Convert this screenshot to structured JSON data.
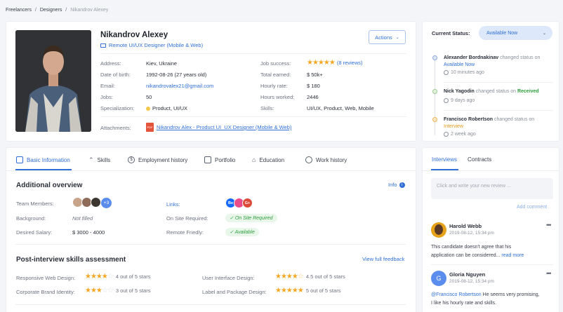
{
  "breadcrumb": {
    "l1": "Freelancers",
    "sep1": "/",
    "l2": "Designers",
    "sep2": "/",
    "l3": "Nikandrov Alexey"
  },
  "profile": {
    "name": "Nikandrov Alexey",
    "title": "Remote UI/UX Designer (Mobile & Web)",
    "actions_label": "Actions",
    "fields_left": [
      {
        "label": "Address:",
        "value": "Kiev, Ukraine"
      },
      {
        "label": "Date of birth:",
        "value": "1992-08-26 (27 years old)"
      },
      {
        "label": "Email:",
        "value": "nikandrovalex21@gmail.com"
      },
      {
        "label": "Jobs:",
        "value": "50"
      },
      {
        "label": "Specialization:",
        "value": "Product, UI/UX"
      }
    ],
    "fields_right": [
      {
        "label": "Job success:",
        "value": "(8 reviews)"
      },
      {
        "label": "Total earned:",
        "value": "$ 50k+"
      },
      {
        "label": "Hourly rate:",
        "value": "$ 180"
      },
      {
        "label": "Hours worked:",
        "value": "2446"
      },
      {
        "label": "Skills:",
        "value": "UI/UX, Product, Web, Mobile"
      }
    ],
    "job_success_stars": 5,
    "attachments_label": "Attachments:",
    "attachment_file": "Nikandrov Alex - Product UI_UX Designer (Mobile & Web)",
    "pdf_badge": "PDF"
  },
  "status": {
    "label": "Current Status:",
    "value": "Available Now",
    "activity": [
      {
        "name": "Alexander Bordnakinav",
        "text": "changed status on",
        "status": "Available Now",
        "status_color": "#2f6fd6",
        "time": "10 minutes ago",
        "dot": "#8fa9d9"
      },
      {
        "name": "Nick Yagodin",
        "text": "changed status on",
        "status": "Received",
        "status_color": "#2e9e3e",
        "time": "9 days ago",
        "dot": "#9cc98f"
      },
      {
        "name": "Francisco Robertson",
        "text": "changed status on",
        "status": "Interview",
        "status_color": "#e39a1f",
        "time": "2 week ago",
        "dot": "#f0b45a"
      }
    ]
  },
  "tabs": [
    "Basic Information",
    "Skills",
    "Employment history",
    "Portfolio",
    "Education",
    "Work history"
  ],
  "overview": {
    "title": "Additional overview",
    "info_label": "Info",
    "team_label": "Team Members:",
    "team_more": "+3",
    "background_label": "Background:",
    "background_value": "Not filled",
    "salary_label": "Desired Salary:",
    "salary_value": "$ 3000 - 4000",
    "links_label": "Links:",
    "links": [
      "Be",
      "",
      "G+"
    ],
    "onsite_label": "On Site Required:",
    "onsite_value": "On Site Required",
    "remote_label": "Remote Friedly:",
    "remote_value": "Available"
  },
  "assessment": {
    "title": "Post-interview skills assessment",
    "link": "View full feedback",
    "skills": [
      {
        "name": "Responsive Web Design:",
        "score": "4 out of 5 stars",
        "stars": 4
      },
      {
        "name": "Corporate Brand Identity:",
        "score": "3 out of 5 stars",
        "stars": 3
      },
      {
        "name": "User Interface Design:",
        "score": "4.5 out of 5 stars",
        "stars": 4.5
      },
      {
        "name": "Label and Package Design:",
        "score": "5 out of 5 stars",
        "stars": 5
      }
    ]
  },
  "reviews_panel": {
    "tab_interviews": "Interviews",
    "tab_contracts": "Contracts",
    "placeholder": "Click and write your new review ...",
    "add_comment": "Add comment",
    "comments": [
      {
        "author": "Harold Webb",
        "date": "2019-08-12, 15:34 pm",
        "text1": "This candidate doesn't agree that his",
        "text2": "application can be considered...",
        "more": "read more",
        "avatar": "#e8a21a"
      },
      {
        "author": "Gloria Nguyen",
        "date": "2019-08-12, 15:34 pm",
        "mention": "@Francisco Robertson",
        "text1": " He seems very promising,",
        "text2": "I like his hourly rate and skills.",
        "initial": "G",
        "avatar": "#5b8def"
      }
    ]
  }
}
